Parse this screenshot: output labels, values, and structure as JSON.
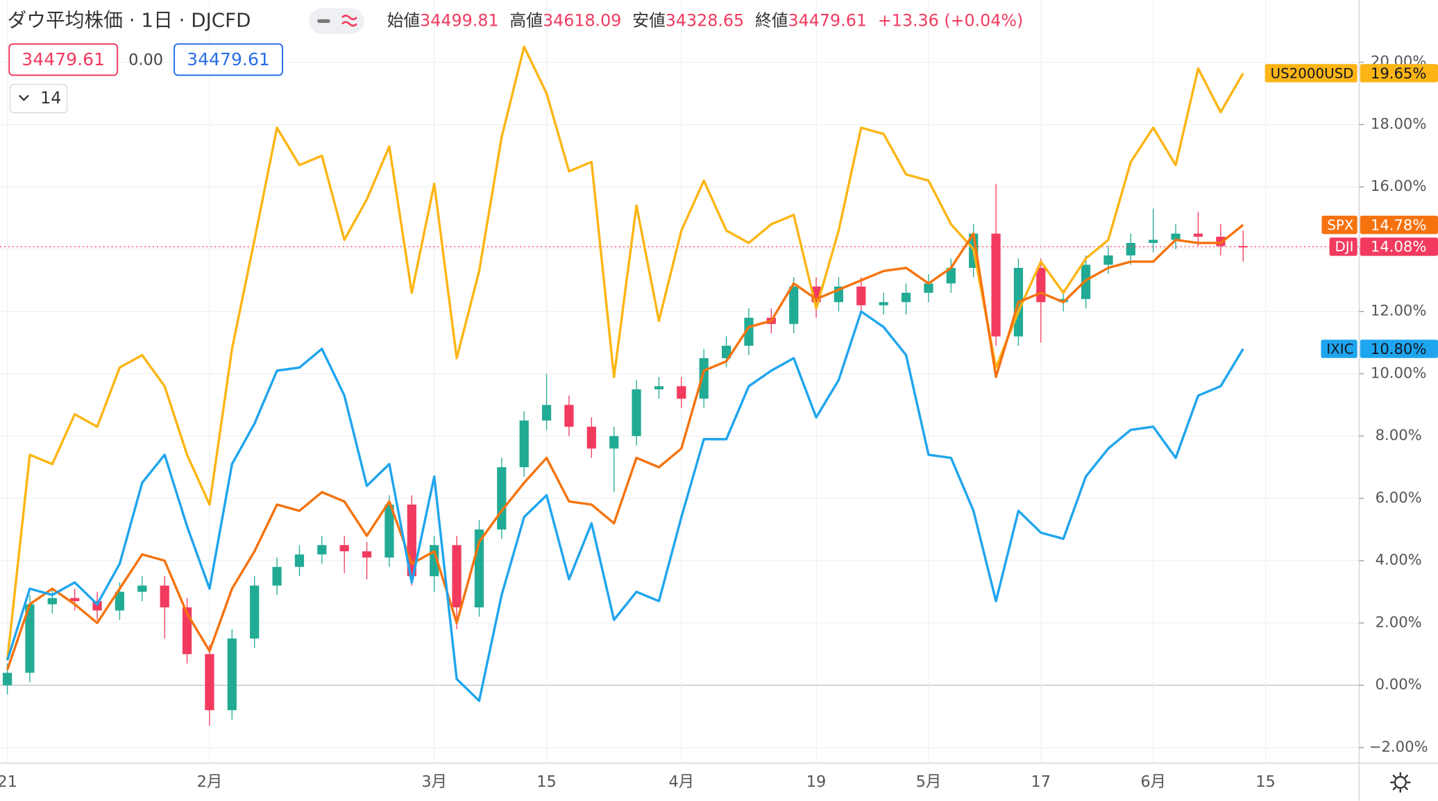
{
  "header": {
    "title": "ダウ平均株価 · 1日 · DJCFD",
    "ohlc": [
      {
        "label": "始値",
        "value": 34499.81
      },
      {
        "label": "高値",
        "value": 34618.09
      },
      {
        "label": "安値",
        "value": 34328.65
      },
      {
        "label": "終値",
        "value": 34479.61
      }
    ],
    "change": "+13.36 (+0.04%)",
    "price_boxes": [
      34479.61,
      "0.00",
      34479.61
    ],
    "indicator": 14
  },
  "chart_data": {
    "type": "line",
    "categories": [
      "21",
      null,
      null,
      null,
      null,
      null,
      null,
      null,
      null,
      "2月",
      null,
      null,
      null,
      null,
      null,
      null,
      null,
      null,
      null,
      "3月",
      null,
      null,
      null,
      null,
      "15",
      null,
      null,
      null,
      null,
      null,
      "4月",
      null,
      null,
      null,
      null,
      null,
      "19",
      null,
      null,
      null,
      null,
      "5月",
      null,
      null,
      null,
      null,
      "17",
      null,
      null,
      null,
      null,
      "6月",
      null,
      null,
      null,
      null,
      "15"
    ],
    "ylim": [
      -2.5,
      22
    ],
    "yticks": [
      {
        "value": -2,
        "label": "−2.00%"
      },
      {
        "value": 0,
        "label": "0.00%"
      },
      {
        "value": 2,
        "label": "2.00%"
      },
      {
        "value": 4,
        "label": "4.00%"
      },
      {
        "value": 6,
        "label": "6.00%"
      },
      {
        "value": 8,
        "label": "8.00%"
      },
      {
        "value": 10,
        "label": "10.00%"
      },
      {
        "value": 12,
        "label": "12.00%"
      },
      {
        "value": 14,
        "label": "14.00%"
      },
      {
        "value": 16,
        "label": "16.00%"
      },
      {
        "value": 18,
        "label": "18.00%"
      },
      {
        "value": 20,
        "label": "20.00%"
      }
    ],
    "grid": true,
    "series": [
      {
        "name": "US2000USD",
        "color": "#fcb514",
        "text_color": "#131722",
        "last_label": "19.65%",
        "values": [
          0.8,
          7.4,
          7.1,
          8.7,
          8.3,
          10.2,
          10.6,
          9.6,
          7.4,
          5.8,
          10.8,
          14.3,
          17.9,
          16.7,
          17.0,
          14.3,
          15.6,
          17.3,
          12.6,
          16.1,
          10.5,
          13.3,
          17.6,
          20.5,
          19.0,
          16.5,
          16.8,
          9.9,
          15.4,
          11.7,
          14.6,
          16.2,
          14.6,
          14.2,
          14.8,
          15.1,
          12.1,
          14.6,
          17.9,
          17.7,
          16.4,
          16.2,
          14.8,
          14.0,
          10.2,
          12.0,
          13.6,
          12.6,
          13.7,
          14.3,
          16.8,
          17.9,
          16.7,
          19.8,
          18.4,
          19.65,
          null
        ]
      },
      {
        "name": "SPX",
        "color": "#f5730f",
        "text_color": "#ffffff",
        "last_label": "14.78%",
        "values": [
          0.5,
          2.6,
          3.1,
          2.6,
          2.0,
          3.1,
          4.2,
          4.0,
          2.3,
          1.1,
          3.1,
          4.3,
          5.8,
          5.6,
          6.2,
          5.9,
          4.8,
          5.9,
          3.9,
          4.3,
          2.0,
          4.6,
          5.6,
          6.5,
          7.3,
          5.9,
          5.8,
          5.2,
          7.3,
          7.0,
          7.6,
          10.1,
          10.4,
          11.5,
          11.7,
          12.9,
          12.4,
          12.7,
          13.0,
          13.3,
          13.4,
          12.9,
          13.4,
          14.5,
          9.9,
          12.3,
          12.6,
          12.3,
          13.0,
          13.4,
          13.6,
          13.6,
          14.3,
          14.2,
          14.2,
          14.78,
          null
        ]
      },
      {
        "name": "IXIC",
        "color": "#1fa5ee",
        "text_color": "#131722",
        "last_label": "10.80%",
        "values": [
          0.8,
          3.1,
          2.9,
          3.3,
          2.6,
          3.9,
          6.5,
          7.4,
          5.1,
          3.1,
          7.1,
          8.4,
          10.1,
          10.2,
          10.8,
          9.3,
          6.4,
          7.1,
          3.3,
          6.7,
          0.2,
          -0.5,
          2.9,
          5.4,
          6.1,
          3.4,
          5.2,
          2.1,
          3.0,
          2.7,
          5.4,
          7.9,
          7.9,
          9.6,
          10.1,
          10.5,
          8.6,
          9.8,
          12.0,
          11.5,
          10.6,
          7.4,
          7.3,
          5.6,
          2.7,
          5.6,
          4.9,
          4.7,
          6.7,
          7.6,
          8.2,
          8.3,
          7.3,
          9.3,
          9.6,
          10.8,
          null
        ]
      }
    ],
    "candles": {
      "name": "DJI",
      "color": "#f23a5f",
      "text_color": "#ffffff",
      "up_color": "#22ab94",
      "down_color": "#f23a5f",
      "last_label": "14.08%",
      "open": [
        0.0,
        0.4,
        2.6,
        2.8,
        2.7,
        2.4,
        3.0,
        3.2,
        2.5,
        1.0,
        -0.8,
        1.5,
        3.2,
        3.8,
        4.2,
        4.5,
        4.3,
        4.1,
        5.8,
        3.5,
        4.5,
        2.5,
        5.0,
        7.0,
        8.5,
        9.0,
        8.3,
        7.6,
        8.0,
        9.5,
        9.6,
        9.2,
        10.5,
        10.9,
        11.8,
        11.6,
        12.8,
        12.3,
        12.8,
        12.2,
        12.3,
        12.6,
        12.9,
        13.4,
        14.5,
        11.2,
        13.4,
        12.3,
        12.4,
        13.5,
        13.8,
        14.2,
        14.3,
        14.5,
        14.4,
        14.1,
        null
      ],
      "high": [
        0.7,
        2.9,
        3.1,
        3.1,
        3.0,
        3.3,
        3.5,
        3.5,
        2.8,
        1.3,
        1.8,
        3.5,
        4.1,
        4.5,
        4.8,
        4.8,
        4.6,
        6.1,
        6.1,
        4.8,
        4.8,
        5.3,
        7.3,
        8.8,
        10.0,
        9.3,
        8.6,
        8.3,
        9.8,
        9.9,
        9.9,
        10.8,
        11.2,
        12.1,
        12.1,
        13.1,
        13.1,
        13.1,
        13.1,
        12.6,
        12.9,
        13.2,
        13.7,
        14.8,
        16.1,
        13.7,
        13.7,
        12.7,
        13.8,
        14.1,
        14.5,
        15.3,
        14.8,
        15.2,
        14.8,
        14.6,
        null
      ],
      "low": [
        -0.3,
        0.1,
        2.3,
        2.4,
        2.1,
        2.1,
        2.7,
        1.5,
        0.7,
        -1.3,
        -1.1,
        1.2,
        2.9,
        3.5,
        3.9,
        3.6,
        3.4,
        3.8,
        3.2,
        3.0,
        1.8,
        2.2,
        4.7,
        6.7,
        8.2,
        8.0,
        7.3,
        6.2,
        7.7,
        9.2,
        8.9,
        8.9,
        10.2,
        10.6,
        11.3,
        11.3,
        11.8,
        12.0,
        11.9,
        11.9,
        11.9,
        12.3,
        12.6,
        13.1,
        10.9,
        10.9,
        11.0,
        12.0,
        12.1,
        13.2,
        13.5,
        13.9,
        14.0,
        14.1,
        13.8,
        13.6,
        null
      ],
      "close": [
        0.4,
        2.6,
        2.8,
        2.7,
        2.4,
        3.0,
        3.2,
        2.5,
        1.0,
        -0.8,
        1.5,
        3.2,
        3.8,
        4.2,
        4.5,
        4.3,
        4.1,
        5.8,
        3.5,
        4.5,
        2.5,
        5.0,
        7.0,
        8.5,
        9.0,
        8.3,
        7.6,
        8.0,
        9.5,
        9.6,
        9.2,
        10.5,
        10.9,
        11.8,
        11.6,
        12.8,
        12.3,
        12.8,
        12.2,
        12.3,
        12.6,
        12.9,
        13.4,
        14.5,
        11.2,
        13.4,
        12.3,
        12.4,
        13.5,
        13.8,
        14.2,
        14.3,
        14.5,
        14.4,
        14.1,
        14.08,
        null
      ]
    }
  }
}
